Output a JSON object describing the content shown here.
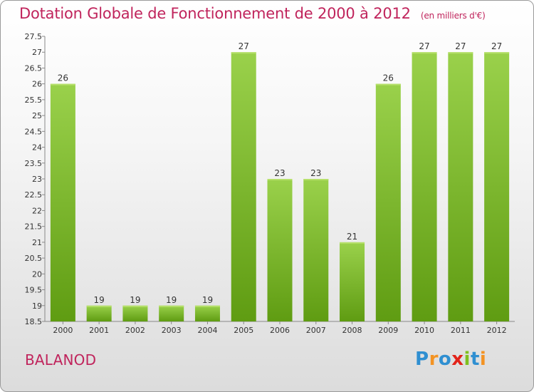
{
  "header": {
    "title": "Dotation Globale de Fonctionnement de 2000 à 2012",
    "subtitle": "(en milliers d'€)"
  },
  "footer": {
    "commune": "BALANOD",
    "logo_letters": [
      {
        "char": "P",
        "color": "#2f8fd1"
      },
      {
        "char": "r",
        "color": "#f39323"
      },
      {
        "char": "o",
        "color": "#2f8fd1"
      },
      {
        "char": "x",
        "color": "#e2231a"
      },
      {
        "char": "i",
        "color": "#7fbf1f"
      },
      {
        "char": "t",
        "color": "#2f8fd1"
      },
      {
        "char": "i",
        "color": "#f39323"
      }
    ]
  },
  "colors": {
    "title": "#c0245c",
    "bar_light": "#9ad14b",
    "bar_dark": "#5f9c12",
    "axis": "#888888"
  },
  "chart_data": {
    "type": "bar",
    "title": "Dotation Globale de Fonctionnement de 2000 à 2012",
    "subtitle": "(en milliers d'€)",
    "categories": [
      "2000",
      "2001",
      "2002",
      "2003",
      "2004",
      "2005",
      "2006",
      "2007",
      "2008",
      "2009",
      "2010",
      "2011",
      "2012"
    ],
    "values": [
      26,
      19,
      19,
      19,
      19,
      27,
      23,
      23,
      21,
      26,
      27,
      27,
      27
    ],
    "data_labels": [
      "26",
      "19",
      "19",
      "19",
      "19",
      "27",
      "23",
      "23",
      "21",
      "26",
      "27",
      "27",
      "27"
    ],
    "ylim": [
      18.5,
      27.5
    ],
    "yticks": [
      18.5,
      19,
      19.5,
      20,
      20.5,
      21,
      21.5,
      22,
      22.5,
      23,
      23.5,
      24,
      24.5,
      25,
      25.5,
      26,
      26.5,
      27,
      27.5
    ],
    "ytick_labels": [
      "18.5",
      "19",
      "19.5",
      "20",
      "20.5",
      "21",
      "21.5",
      "22",
      "22.5",
      "23",
      "23.5",
      "24",
      "24.5",
      "25",
      "25.5",
      "26",
      "26.5",
      "27",
      "27.5"
    ],
    "grid": false,
    "xlabel": "",
    "ylabel": ""
  }
}
